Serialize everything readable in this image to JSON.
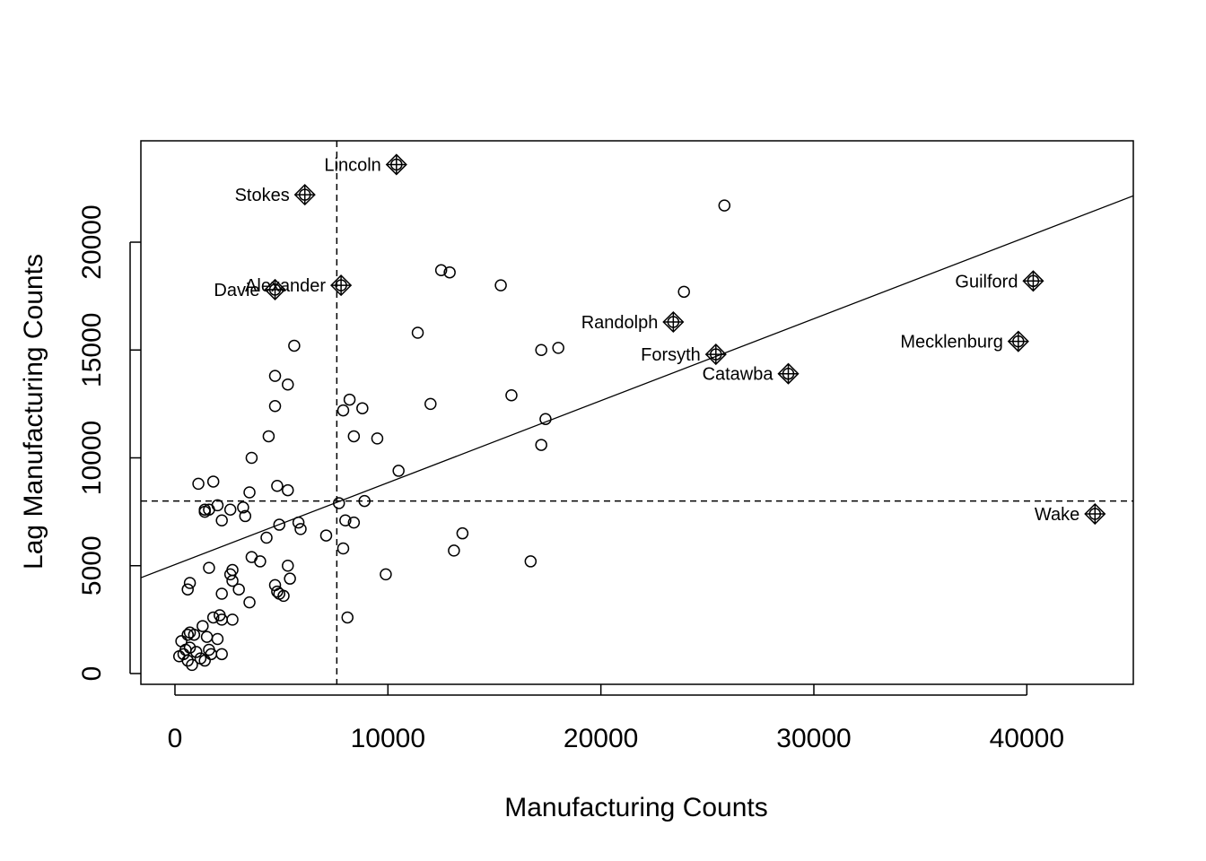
{
  "chart_data": {
    "type": "scatter",
    "title": "",
    "xlabel": "Manufacturing Counts",
    "ylabel": "Lag Manufacturing Counts",
    "xlim": [
      -1600,
      45000
    ],
    "ylim": [
      -500,
      24700
    ],
    "x_ticks": [
      0,
      10000,
      20000,
      30000,
      40000
    ],
    "y_ticks": [
      0,
      5000,
      10000,
      15000,
      20000
    ],
    "grid": false,
    "mean_lines": {
      "x": 7600,
      "y": 8000
    },
    "regression_line": {
      "intercept": 5050,
      "slope": 0.38
    },
    "points": [
      {
        "x": 200,
        "y": 800
      },
      {
        "x": 300,
        "y": 1500
      },
      {
        "x": 400,
        "y": 900
      },
      {
        "x": 500,
        "y": 1100
      },
      {
        "x": 600,
        "y": 600
      },
      {
        "x": 700,
        "y": 1200
      },
      {
        "x": 800,
        "y": 400
      },
      {
        "x": 900,
        "y": 1800
      },
      {
        "x": 1000,
        "y": 1000
      },
      {
        "x": 1200,
        "y": 700
      },
      {
        "x": 1300,
        "y": 2200
      },
      {
        "x": 1400,
        "y": 600
      },
      {
        "x": 1500,
        "y": 1700
      },
      {
        "x": 1600,
        "y": 1100
      },
      {
        "x": 1700,
        "y": 900
      },
      {
        "x": 2000,
        "y": 1600
      },
      {
        "x": 2200,
        "y": 900
      },
      {
        "x": 600,
        "y": 1800
      },
      {
        "x": 700,
        "y": 1900
      },
      {
        "x": 600,
        "y": 3900
      },
      {
        "x": 700,
        "y": 4200
      },
      {
        "x": 1600,
        "y": 4900
      },
      {
        "x": 1800,
        "y": 2600
      },
      {
        "x": 2100,
        "y": 2700
      },
      {
        "x": 2200,
        "y": 3700
      },
      {
        "x": 2200,
        "y": 2500
      },
      {
        "x": 2600,
        "y": 4600
      },
      {
        "x": 2700,
        "y": 4300
      },
      {
        "x": 2700,
        "y": 4800
      },
      {
        "x": 2700,
        "y": 2500
      },
      {
        "x": 3000,
        "y": 3900
      },
      {
        "x": 3500,
        "y": 3300
      },
      {
        "x": 3600,
        "y": 5400
      },
      {
        "x": 4000,
        "y": 5200
      },
      {
        "x": 4300,
        "y": 6300
      },
      {
        "x": 4700,
        "y": 4100
      },
      {
        "x": 4800,
        "y": 3800
      },
      {
        "x": 4900,
        "y": 3700
      },
      {
        "x": 5100,
        "y": 3600
      },
      {
        "x": 5300,
        "y": 5000
      },
      {
        "x": 5400,
        "y": 4400
      },
      {
        "x": 1100,
        "y": 8800
      },
      {
        "x": 1400,
        "y": 7500
      },
      {
        "x": 1400,
        "y": 7600
      },
      {
        "x": 1600,
        "y": 7600
      },
      {
        "x": 1800,
        "y": 8900
      },
      {
        "x": 2000,
        "y": 7800
      },
      {
        "x": 2200,
        "y": 7100
      },
      {
        "x": 2600,
        "y": 7600
      },
      {
        "x": 3200,
        "y": 7700
      },
      {
        "x": 3300,
        "y": 7300
      },
      {
        "x": 3500,
        "y": 8400
      },
      {
        "x": 3600,
        "y": 10000
      },
      {
        "x": 4400,
        "y": 11000
      },
      {
        "x": 4700,
        "y": 12400
      },
      {
        "x": 4700,
        "y": 13800
      },
      {
        "x": 4800,
        "y": 8700
      },
      {
        "x": 4900,
        "y": 6900
      },
      {
        "x": 5300,
        "y": 8500
      },
      {
        "x": 5300,
        "y": 13400
      },
      {
        "x": 5600,
        "y": 15200
      },
      {
        "x": 5800,
        "y": 7000
      },
      {
        "x": 5900,
        "y": 6700
      },
      {
        "x": 7100,
        "y": 6400
      },
      {
        "x": 7700,
        "y": 7900
      },
      {
        "x": 7900,
        "y": 5800
      },
      {
        "x": 7900,
        "y": 12200
      },
      {
        "x": 8000,
        "y": 7100
      },
      {
        "x": 8100,
        "y": 2600
      },
      {
        "x": 8200,
        "y": 12700
      },
      {
        "x": 8400,
        "y": 7000
      },
      {
        "x": 8400,
        "y": 11000
      },
      {
        "x": 8800,
        "y": 12300
      },
      {
        "x": 8900,
        "y": 8000
      },
      {
        "x": 9500,
        "y": 10900
      },
      {
        "x": 9900,
        "y": 4600
      },
      {
        "x": 10500,
        "y": 9400
      },
      {
        "x": 11400,
        "y": 15800
      },
      {
        "x": 12000,
        "y": 12500
      },
      {
        "x": 12500,
        "y": 18700
      },
      {
        "x": 12900,
        "y": 18600
      },
      {
        "x": 13100,
        "y": 5700
      },
      {
        "x": 13500,
        "y": 6500
      },
      {
        "x": 15300,
        "y": 18000
      },
      {
        "x": 15800,
        "y": 12900
      },
      {
        "x": 16700,
        "y": 5200
      },
      {
        "x": 17200,
        "y": 15000
      },
      {
        "x": 17200,
        "y": 10600
      },
      {
        "x": 17400,
        "y": 11800
      },
      {
        "x": 18000,
        "y": 15100
      },
      {
        "x": 23900,
        "y": 17700
      },
      {
        "x": 25800,
        "y": 21700
      }
    ],
    "labeled_points": [
      {
        "name": "Lincoln",
        "x": 10400,
        "y": 23600
      },
      {
        "name": "Stokes",
        "x": 6100,
        "y": 22200
      },
      {
        "name": "Alexander",
        "x": 7800,
        "y": 18000
      },
      {
        "name": "Davie",
        "x": 4700,
        "y": 17800
      },
      {
        "name": "Guilford",
        "x": 40300,
        "y": 18200
      },
      {
        "name": "Randolph",
        "x": 23400,
        "y": 16300
      },
      {
        "name": "Mecklenburg",
        "x": 39600,
        "y": 15400
      },
      {
        "name": "Forsyth",
        "x": 25400,
        "y": 14800
      },
      {
        "name": "Catawba",
        "x": 28800,
        "y": 13900
      },
      {
        "name": "Wake",
        "x": 43200,
        "y": 7400
      }
    ]
  }
}
